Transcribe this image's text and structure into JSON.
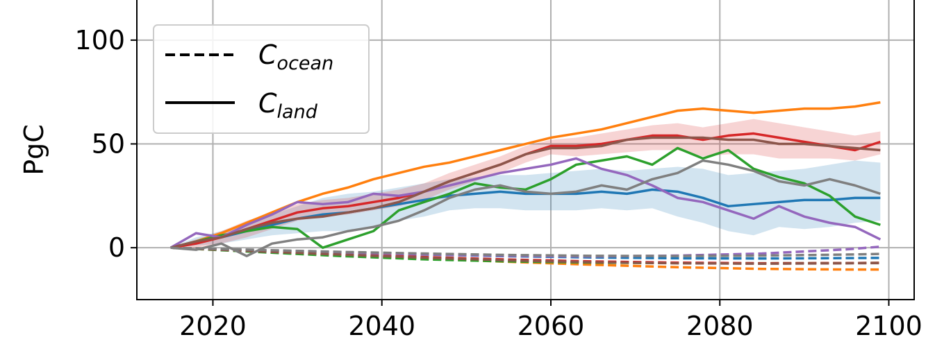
{
  "chart_data": {
    "type": "line",
    "title": "",
    "xlabel": "",
    "ylabel": "PgC",
    "xlim": [
      2011,
      2103
    ],
    "ylim": [
      -25,
      120
    ],
    "xticks": [
      2020,
      2040,
      2060,
      2080,
      2100
    ],
    "yticks": [
      0,
      50,
      100
    ],
    "grid": true,
    "legend": {
      "placement": "upper-left",
      "entries": [
        {
          "base": "C",
          "sub": "ocean",
          "style": "dashed",
          "color": "#000000"
        },
        {
          "base": "C",
          "sub": "land",
          "style": "solid",
          "color": "#000000"
        }
      ]
    },
    "series": [
      {
        "color": "#1f77b4",
        "style": "solid",
        "x": [
          2015,
          2018,
          2021,
          2024,
          2027,
          2030,
          2033,
          2036,
          2039,
          2042,
          2045,
          2048,
          2051,
          2054,
          2057,
          2060,
          2063,
          2066,
          2069,
          2072,
          2075,
          2078,
          2081,
          2084,
          2087,
          2090,
          2093,
          2096,
          2099
        ],
        "y": [
          0,
          3,
          5,
          8,
          11,
          14,
          16,
          17,
          19,
          21,
          23,
          25,
          26,
          27,
          26,
          26,
          26,
          27,
          26,
          28,
          27,
          24,
          20,
          21,
          22,
          23,
          23,
          24,
          24
        ],
        "band_low": [
          0,
          1,
          2,
          4,
          6,
          7,
          8,
          8,
          10,
          13,
          15,
          18,
          19,
          19,
          18,
          18,
          18,
          19,
          18,
          19,
          15,
          12,
          8,
          6,
          10,
          9,
          10,
          12,
          13
        ],
        "band_high": [
          0,
          5,
          8,
          12,
          16,
          20,
          24,
          26,
          27,
          29,
          31,
          33,
          34,
          35,
          35,
          36,
          37,
          38,
          37,
          38,
          39,
          38,
          35,
          36,
          37,
          38,
          40,
          42,
          41
        ]
      },
      {
        "color": "#ff7f0e",
        "style": "solid",
        "x": [
          2015,
          2018,
          2021,
          2024,
          2027,
          2030,
          2033,
          2036,
          2039,
          2042,
          2045,
          2048,
          2051,
          2054,
          2057,
          2060,
          2063,
          2066,
          2069,
          2072,
          2075,
          2078,
          2081,
          2084,
          2087,
          2090,
          2093,
          2096,
          2099
        ],
        "y": [
          0,
          3,
          7,
          12,
          17,
          22,
          26,
          29,
          33,
          36,
          39,
          41,
          44,
          47,
          50,
          53,
          55,
          57,
          60,
          63,
          66,
          67,
          66,
          65,
          66,
          67,
          67,
          68,
          70
        ]
      },
      {
        "color": "#2ca02c",
        "style": "solid",
        "x": [
          2015,
          2018,
          2021,
          2024,
          2027,
          2030,
          2033,
          2036,
          2039,
          2042,
          2045,
          2048,
          2051,
          2054,
          2057,
          2060,
          2063,
          2066,
          2069,
          2072,
          2075,
          2078,
          2081,
          2084,
          2087,
          2090,
          2093,
          2096,
          2099
        ],
        "y": [
          0,
          3,
          6,
          8,
          10,
          9,
          0,
          4,
          8,
          18,
          22,
          26,
          31,
          29,
          28,
          33,
          40,
          42,
          44,
          40,
          48,
          43,
          47,
          38,
          34,
          31,
          25,
          15,
          11
        ]
      },
      {
        "color": "#d62728",
        "style": "solid",
        "x": [
          2015,
          2018,
          2021,
          2024,
          2027,
          2030,
          2033,
          2036,
          2039,
          2042,
          2045,
          2048,
          2051,
          2054,
          2057,
          2060,
          2063,
          2066,
          2069,
          2072,
          2075,
          2078,
          2081,
          2084,
          2087,
          2090,
          2093,
          2096,
          2099
        ],
        "y": [
          0,
          2,
          5,
          9,
          13,
          17,
          19,
          20,
          22,
          24,
          27,
          32,
          36,
          40,
          45,
          49,
          49,
          50,
          52,
          54,
          54,
          52,
          54,
          55,
          53,
          51,
          49,
          47,
          51
        ],
        "band_low": [
          0,
          0,
          2,
          5,
          9,
          13,
          15,
          16,
          18,
          20,
          23,
          28,
          32,
          36,
          41,
          45,
          44,
          45,
          46,
          47,
          47,
          44,
          45,
          45,
          43,
          43,
          43,
          42,
          45
        ],
        "band_high": [
          0,
          4,
          8,
          13,
          17,
          21,
          23,
          24,
          26,
          28,
          31,
          36,
          40,
          44,
          49,
          52,
          53,
          55,
          57,
          59,
          60,
          58,
          60,
          62,
          60,
          58,
          56,
          54,
          56
        ]
      },
      {
        "color": "#9467bd",
        "style": "solid",
        "x": [
          2015,
          2018,
          2021,
          2024,
          2027,
          2030,
          2033,
          2036,
          2039,
          2042,
          2045,
          2048,
          2051,
          2054,
          2057,
          2060,
          2063,
          2066,
          2069,
          2072,
          2075,
          2078,
          2081,
          2084,
          2087,
          2090,
          2093,
          2096,
          2099
        ],
        "y": [
          0,
          7,
          5,
          11,
          16,
          22,
          21,
          22,
          26,
          25,
          27,
          30,
          33,
          36,
          38,
          40,
          43,
          38,
          35,
          30,
          24,
          22,
          18,
          14,
          20,
          15,
          12,
          10,
          4
        ]
      },
      {
        "color": "#8c564b",
        "style": "solid",
        "x": [
          2015,
          2018,
          2021,
          2024,
          2027,
          2030,
          2033,
          2036,
          2039,
          2042,
          2045,
          2048,
          2051,
          2054,
          2057,
          2060,
          2063,
          2066,
          2069,
          2072,
          2075,
          2078,
          2081,
          2084,
          2087,
          2090,
          2093,
          2096,
          2099
        ],
        "y": [
          0,
          3,
          5,
          9,
          12,
          14,
          15,
          17,
          19,
          22,
          27,
          32,
          36,
          40,
          45,
          48,
          48,
          49,
          52,
          53,
          53,
          53,
          52,
          52,
          50,
          50,
          49,
          48,
          47
        ]
      },
      {
        "color": "#7f7f7f",
        "style": "solid",
        "x": [
          2015,
          2018,
          2021,
          2024,
          2027,
          2030,
          2033,
          2036,
          2039,
          2042,
          2045,
          2048,
          2051,
          2054,
          2057,
          2060,
          2063,
          2066,
          2069,
          2072,
          2075,
          2078,
          2081,
          2084,
          2087,
          2090,
          2093,
          2096,
          2099
        ],
        "y": [
          0,
          -1,
          2,
          -4,
          2,
          4,
          5,
          8,
          10,
          13,
          18,
          24,
          28,
          30,
          27,
          26,
          27,
          30,
          28,
          33,
          36,
          42,
          40,
          37,
          32,
          30,
          33,
          30,
          26
        ]
      },
      {
        "color": "#1f77b4",
        "style": "dashed",
        "x": [
          2015,
          2025,
          2035,
          2045,
          2055,
          2065,
          2075,
          2085,
          2095,
          2099
        ],
        "y": [
          0,
          -1.2,
          -2.3,
          -3.3,
          -4.1,
          -4.7,
          -5.1,
          -5.2,
          -5.0,
          -4.9
        ]
      },
      {
        "color": "#ff7f0e",
        "style": "dashed",
        "x": [
          2015,
          2025,
          2035,
          2045,
          2055,
          2065,
          2075,
          2085,
          2095,
          2099
        ],
        "y": [
          0,
          -1.8,
          -3.5,
          -5.2,
          -6.8,
          -8.2,
          -9.4,
          -10.2,
          -10.5,
          -10.5
        ]
      },
      {
        "color": "#2ca02c",
        "style": "dashed",
        "x": [
          2015,
          2025,
          2035,
          2045,
          2055,
          2065,
          2075,
          2085,
          2095,
          2099
        ],
        "y": [
          0,
          -2.0,
          -4.0,
          -5.6,
          -6.6,
          -7.2,
          -7.4,
          -7.5,
          -7.4,
          -7.3
        ]
      },
      {
        "color": "#d62728",
        "style": "dashed",
        "x": [
          2015,
          2025,
          2035,
          2045,
          2055,
          2065,
          2075,
          2085,
          2095,
          2099
        ],
        "y": [
          0,
          -1.6,
          -3.1,
          -4.5,
          -5.7,
          -6.6,
          -7.2,
          -7.5,
          -7.4,
          -7.3
        ]
      },
      {
        "color": "#9467bd",
        "style": "dashed",
        "x": [
          2015,
          2025,
          2035,
          2045,
          2055,
          2065,
          2075,
          2085,
          2095,
          2099
        ],
        "y": [
          0,
          -1.2,
          -2.3,
          -3.2,
          -3.9,
          -4.2,
          -3.8,
          -2.8,
          -0.8,
          0.5
        ]
      },
      {
        "color": "#8c564b",
        "style": "dashed",
        "x": [
          2015,
          2025,
          2035,
          2045,
          2055,
          2065,
          2075,
          2085,
          2095,
          2099
        ],
        "y": [
          0,
          -1.7,
          -3.3,
          -4.8,
          -6.1,
          -7.0,
          -7.5,
          -7.7,
          -7.5,
          -7.4
        ]
      },
      {
        "color": "#7f7f7f",
        "style": "dashed",
        "x": [
          2015,
          2025,
          2035,
          2045,
          2055,
          2065,
          2075,
          2085,
          2095,
          2099
        ],
        "y": [
          0,
          -1.0,
          -2.0,
          -2.8,
          -3.5,
          -3.9,
          -4.0,
          -3.8,
          -3.3,
          -3.0
        ]
      }
    ]
  }
}
